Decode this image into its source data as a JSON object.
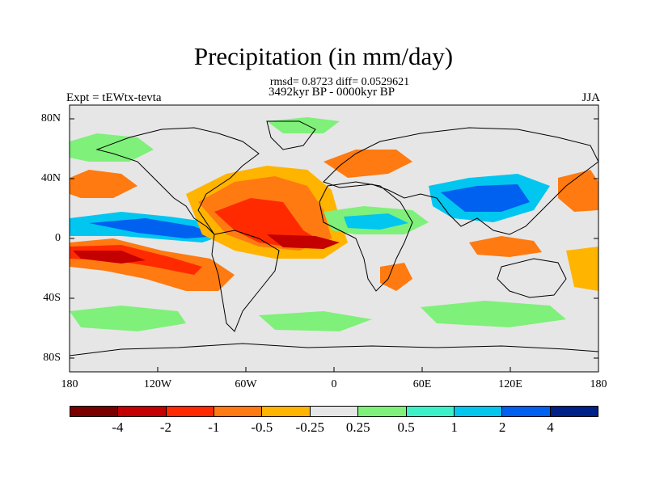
{
  "header": {
    "title": "Precipitation (in mm/day)",
    "stats_line": "rmsd= 0.8723 diff= 0.0529621",
    "period_line": "3492kyr BP - 0000kyr BP",
    "experiment": "Expt = tEWtx-tevta",
    "season": "JJA"
  },
  "map": {
    "lat_labels": [
      "80N",
      "40N",
      "0",
      "40S",
      "80S"
    ],
    "lon_labels": [
      "180",
      "120W",
      "60W",
      "0",
      "60E",
      "120E",
      "180"
    ],
    "background_color": "#e6e6e6",
    "coastline_color": "#000000"
  },
  "colorbar": {
    "colors": [
      "#7a0000",
      "#c40000",
      "#ff2a00",
      "#ff7a10",
      "#ffb400",
      "#e6e6e6",
      "#7ff07a",
      "#3ef0c8",
      "#00c6f0",
      "#0060f0",
      "#00208a"
    ],
    "labels": [
      "-4",
      "-2",
      "-1",
      "-0.5",
      "-0.25",
      "0.25",
      "0.5",
      "1",
      "2",
      "4"
    ]
  }
}
